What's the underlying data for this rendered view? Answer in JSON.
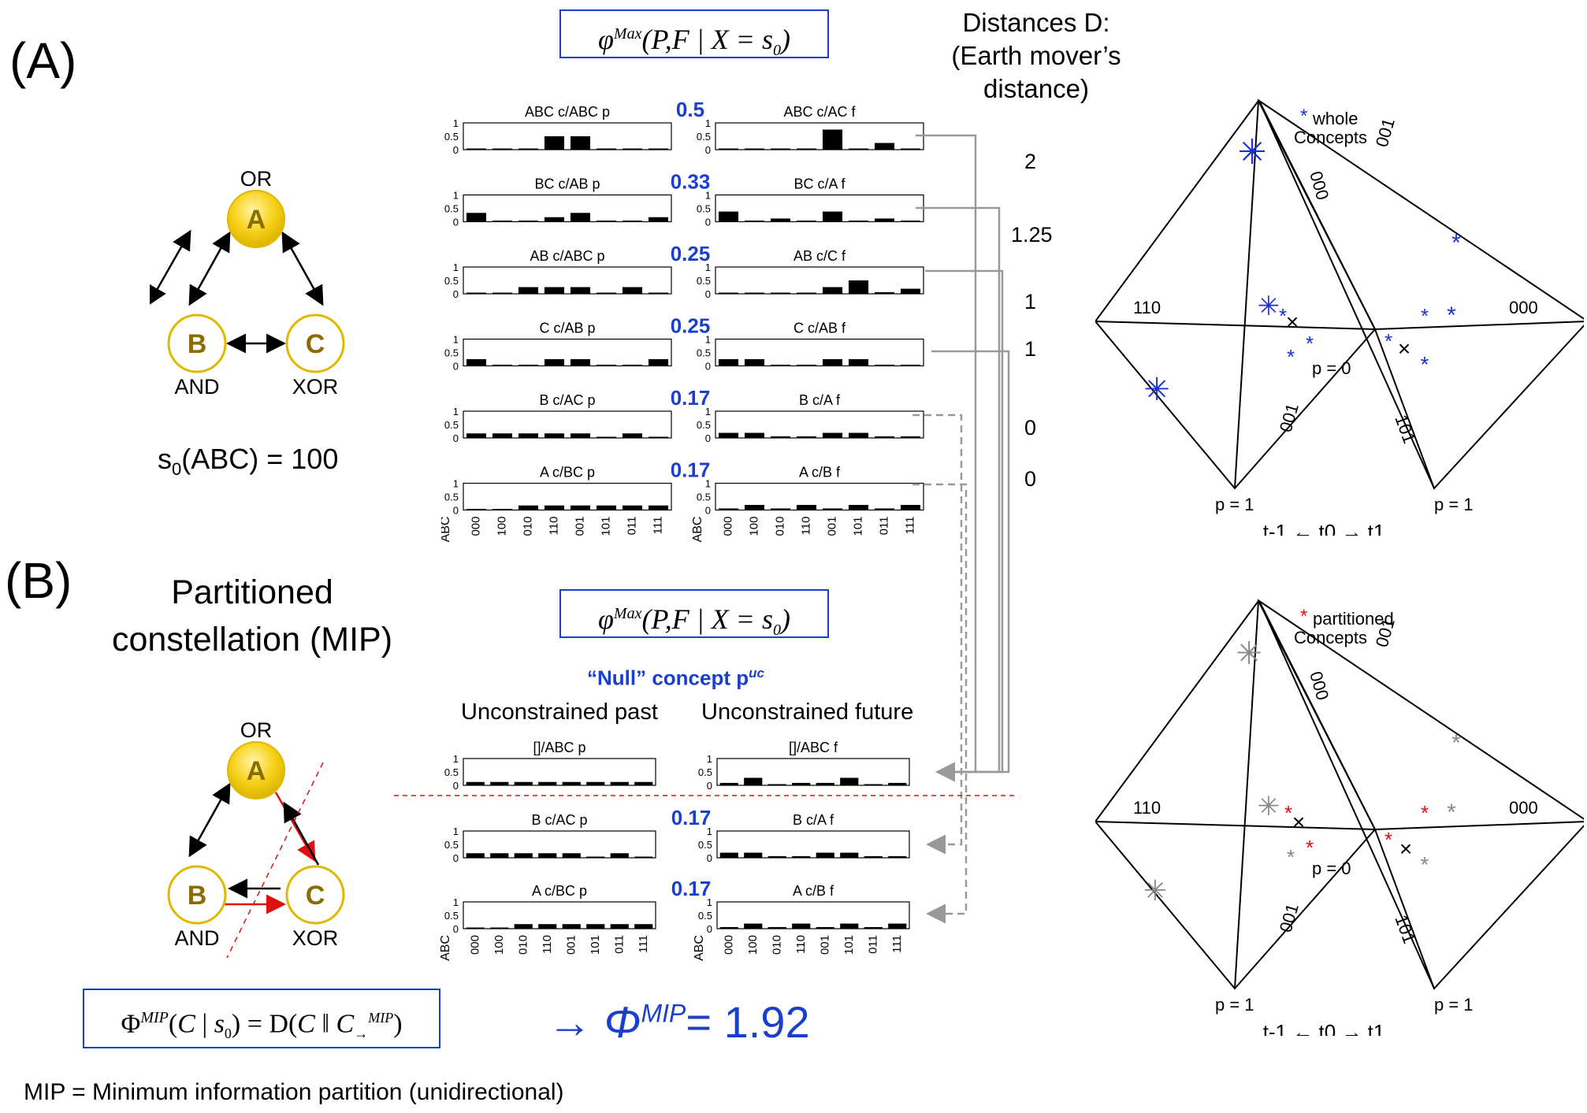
{
  "panel_a_label": "(A)",
  "panel_b_label": "(B)",
  "partitioned_title_1": "Partitioned",
  "partitioned_title_2": "constellation (MIP)",
  "network": {
    "nodes": [
      {
        "id": "A",
        "gate": "OR"
      },
      {
        "id": "B",
        "gate": "AND"
      },
      {
        "id": "C",
        "gate": "XOR"
      }
    ],
    "state_label": "s₀(ABC) = 100",
    "node_fill": "#f7d21c",
    "node_text_color": "#8a6d00"
  },
  "phi_max_formula": "φ^Max(P,F | X = s₀)",
  "distances_title": [
    "Distances D:",
    "(Earth mover’s",
    "distance)"
  ],
  "x_states": [
    "000",
    "100",
    "010",
    "110",
    "001",
    "101",
    "011",
    "111"
  ],
  "x_axis_label": "ABC",
  "y_ticks": [
    "1",
    "0.5",
    "0"
  ],
  "whole_concepts": [
    {
      "phi": "0.5",
      "past_label": "ABC c/ABC p",
      "future_label": "ABC c/AC f",
      "distance": "2",
      "past": [
        0,
        0,
        0,
        0.5,
        0.5,
        0,
        0,
        0
      ],
      "future": [
        0,
        0,
        0,
        0,
        0.75,
        0,
        0.25,
        0
      ]
    },
    {
      "phi": "0.33",
      "past_label": "BC c/AB p",
      "future_label": "BC c/A f",
      "distance": "1.25",
      "past": [
        0.33,
        0,
        0,
        0.17,
        0.33,
        0,
        0,
        0.17
      ],
      "future": [
        0.38,
        0,
        0.12,
        0,
        0.38,
        0,
        0.12,
        0
      ]
    },
    {
      "phi": "0.25",
      "past_label": "AB c/ABC p",
      "future_label": "AB c/C f",
      "distance": "1",
      "past": [
        0,
        0,
        0.25,
        0.25,
        0.25,
        0,
        0.25,
        0
      ],
      "future": [
        0,
        0,
        0,
        0,
        0.25,
        0.5,
        0.06,
        0.19
      ]
    },
    {
      "phi": "0.25",
      "past_label": "C c/AB p",
      "future_label": "C c/AB f",
      "distance": "1",
      "past": [
        0.25,
        0,
        0,
        0.25,
        0.25,
        0,
        0,
        0.25
      ],
      "future": [
        0.25,
        0.25,
        0,
        0,
        0.25,
        0.25,
        0,
        0
      ]
    },
    {
      "phi": "0.17",
      "past_label": "B c/AC p",
      "future_label": "B c/A f",
      "distance": "0",
      "past": [
        0.17,
        0.17,
        0.17,
        0.17,
        0.17,
        0,
        0.17,
        0
      ],
      "future": [
        0.19,
        0.19,
        0.06,
        0.06,
        0.19,
        0.19,
        0.06,
        0.06
      ]
    },
    {
      "phi": "0.17",
      "past_label": "A c/BC p",
      "future_label": "A c/B f",
      "distance": "0",
      "past": [
        0,
        0,
        0.17,
        0.17,
        0.17,
        0.17,
        0.17,
        0.17
      ],
      "future": [
        0.06,
        0.19,
        0.06,
        0.19,
        0.06,
        0.19,
        0.06,
        0.19
      ]
    }
  ],
  "null_concept_title": "“Null” concept p",
  "null_concept_sup": "uc",
  "unconstrained_past": "Unconstrained past",
  "unconstrained_future": "Unconstrained future",
  "null_concept": {
    "past_label": "[]/ABC p",
    "future_label": "[]/ABC f",
    "past": [
      0.125,
      0.125,
      0.125,
      0.125,
      0.125,
      0.125,
      0.125,
      0.125
    ],
    "future": [
      0.09,
      0.28,
      0.03,
      0.09,
      0.09,
      0.28,
      0.03,
      0.09
    ]
  },
  "partitioned_concepts": [
    {
      "phi": "0.17",
      "past_label": "B c/AC p",
      "future_label": "B c/A f",
      "past": [
        0.17,
        0.17,
        0.17,
        0.17,
        0.17,
        0,
        0.17,
        0
      ],
      "future": [
        0.19,
        0.19,
        0.06,
        0.06,
        0.19,
        0.19,
        0.06,
        0.06
      ]
    },
    {
      "phi": "0.17",
      "past_label": "A c/BC p",
      "future_label": "A c/B f",
      "past": [
        0,
        0,
        0.17,
        0.17,
        0.17,
        0.17,
        0.17,
        0.17
      ],
      "future": [
        0.06,
        0.19,
        0.06,
        0.19,
        0.06,
        0.19,
        0.06,
        0.19
      ]
    }
  ],
  "phi_mip_formula": "Φ^MIP(C | s₀) = D(C ‖ C→^MIP)",
  "phi_mip_result": "→ Φ^MIP = 1.92",
  "mip_note": "MIP = Minimum information partition (unidirectional)",
  "tetra_top": {
    "legend_symbol": "*",
    "legend_text_1": "whole",
    "legend_text_2": "Concepts",
    "legend_color": "#1a2fd6"
  },
  "tetra_bottom": {
    "legend_symbol": "*",
    "legend_text_1": "partitioned",
    "legend_text_2": "Concepts",
    "legend_color": "#e01010",
    "ghost_color": "#888888"
  },
  "tetra_labels": {
    "left_state": "110",
    "right_state": "000",
    "top_left_edge": "000",
    "top_right_edge": "001",
    "bottom_left_edge": "001",
    "bottom_right_edge": "101",
    "p_zero": "p = 0",
    "p_one": "p = 1",
    "time_axis": "t-1 ← t0 → t1",
    "cross": "×"
  }
}
